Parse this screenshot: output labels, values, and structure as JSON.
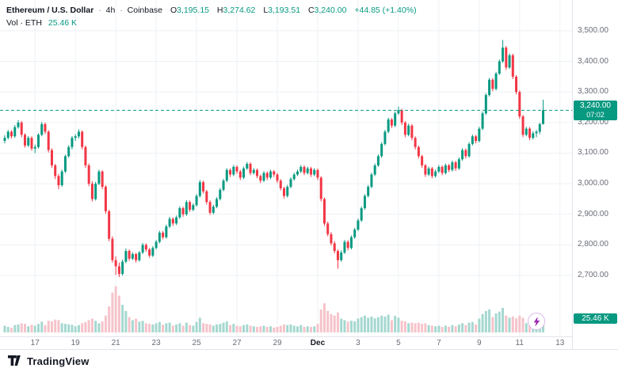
{
  "header": {
    "symbol": "Ethereum / U.S. Dollar",
    "separator": "·",
    "interval": "4h",
    "exchange": "Coinbase",
    "ohlc": {
      "open_label": "O",
      "open": "3,195.15",
      "high_label": "H",
      "high": "3,274.62",
      "low_label": "L",
      "low": "3,193.51",
      "close_label": "C",
      "close": "3,240.00",
      "change": "+44.85 (+1.40%)"
    },
    "volume_label": "Vol · ETH",
    "volume_value": "25.46 K"
  },
  "price_axis": {
    "last_price_badge": {
      "price": "3,240.00",
      "countdown": "07:02"
    },
    "volume_badge": "25.46 K"
  },
  "footer": {
    "brand": "TradingView"
  },
  "colors": {
    "up": "#089981",
    "down": "#f23645",
    "volume_up": "#a5d8d0",
    "volume_down": "#f6c3ca",
    "accent": "#089981",
    "grid": "#eef1f5",
    "axis_border": "#e0e3eb",
    "text": "#131722",
    "muted_text": "#6a6d78",
    "lightning": "#9c27b0"
  },
  "chart_data": {
    "type": "candlestick",
    "title": "Ethereum / U.S. Dollar",
    "interval": "4h",
    "exchange": "Coinbase",
    "legend_position": "top-left",
    "grid": true,
    "last_price": 3240.0,
    "countdown": "07:02",
    "current_volume_k": 25.46,
    "volume_axis_max_k": 155,
    "price_view_range": [
      2660,
      3560
    ],
    "y_ticks": [
      {
        "text": "3,500.00",
        "value": 3500
      },
      {
        "text": "3,400.00",
        "value": 3400
      },
      {
        "text": "3,300.00",
        "value": 3300
      },
      {
        "text": "3,200.00",
        "value": 3200
      },
      {
        "text": "3,100.00",
        "value": 3100
      },
      {
        "text": "3,000.00",
        "value": 3000
      },
      {
        "text": "2,900.00",
        "value": 2900
      },
      {
        "text": "2,800.00",
        "value": 2800
      },
      {
        "text": "2,700.00",
        "value": 2700
      }
    ],
    "x_ticks": [
      {
        "text": "17",
        "i": 9
      },
      {
        "text": "19",
        "i": 21
      },
      {
        "text": "21",
        "i": 33
      },
      {
        "text": "23",
        "i": 45
      },
      {
        "text": "25",
        "i": 57
      },
      {
        "text": "27",
        "i": 69
      },
      {
        "text": "29",
        "i": 81
      },
      {
        "text": "Dec",
        "i": 93,
        "strong": true
      },
      {
        "text": "3",
        "i": 105
      },
      {
        "text": "5",
        "i": 117
      },
      {
        "text": "7",
        "i": 129
      },
      {
        "text": "9",
        "i": 141
      },
      {
        "text": "11",
        "i": 153
      },
      {
        "text": "13",
        "i": 165
      }
    ],
    "candles_format": [
      "open",
      "high",
      "low",
      "close",
      "volume_k"
    ],
    "candles": [
      [
        3140,
        3158,
        3132,
        3150,
        22
      ],
      [
        3150,
        3176,
        3145,
        3170,
        18
      ],
      [
        3170,
        3175,
        3148,
        3155,
        15
      ],
      [
        3155,
        3192,
        3150,
        3185,
        24
      ],
      [
        3185,
        3208,
        3180,
        3200,
        26
      ],
      [
        3200,
        3205,
        3152,
        3160,
        30
      ],
      [
        3160,
        3165,
        3118,
        3125,
        28
      ],
      [
        3125,
        3156,
        3120,
        3150,
        20
      ],
      [
        3150,
        3155,
        3108,
        3115,
        25
      ],
      [
        3115,
        3128,
        3100,
        3120,
        22
      ],
      [
        3120,
        3165,
        3115,
        3160,
        28
      ],
      [
        3160,
        3202,
        3155,
        3195,
        35
      ],
      [
        3195,
        3200,
        3162,
        3170,
        24
      ],
      [
        3170,
        3175,
        3102,
        3110,
        38
      ],
      [
        3110,
        3116,
        3052,
        3060,
        36
      ],
      [
        3060,
        3065,
        3015,
        3025,
        42
      ],
      [
        3025,
        3032,
        2982,
        2995,
        40
      ],
      [
        2995,
        3046,
        2990,
        3040,
        30
      ],
      [
        3040,
        3095,
        3035,
        3090,
        28
      ],
      [
        3090,
        3126,
        3085,
        3120,
        26
      ],
      [
        3120,
        3156,
        3112,
        3150,
        25
      ],
      [
        3150,
        3162,
        3140,
        3155,
        20
      ],
      [
        3155,
        3178,
        3148,
        3170,
        24
      ],
      [
        3170,
        3174,
        3112,
        3120,
        30
      ],
      [
        3120,
        3125,
        3052,
        3060,
        34
      ],
      [
        3060,
        3066,
        2992,
        3000,
        40
      ],
      [
        3000,
        3008,
        2942,
        2950,
        45
      ],
      [
        2950,
        3006,
        2945,
        3000,
        38
      ],
      [
        3000,
        3046,
        2995,
        3040,
        30
      ],
      [
        3040,
        3044,
        2982,
        2990,
        36
      ],
      [
        2990,
        2995,
        2902,
        2910,
        55
      ],
      [
        2910,
        2915,
        2812,
        2820,
        85
      ],
      [
        2820,
        2828,
        2742,
        2750,
        130
      ],
      [
        2750,
        2762,
        2702,
        2730,
        150
      ],
      [
        2730,
        2742,
        2695,
        2705,
        120
      ],
      [
        2705,
        2752,
        2700,
        2745,
        90
      ],
      [
        2745,
        2788,
        2740,
        2780,
        70
      ],
      [
        2780,
        2785,
        2748,
        2755,
        50
      ],
      [
        2755,
        2776,
        2750,
        2770,
        40
      ],
      [
        2770,
        2774,
        2742,
        2750,
        45
      ],
      [
        2750,
        2780,
        2745,
        2775,
        35
      ],
      [
        2775,
        2806,
        2770,
        2800,
        38
      ],
      [
        2800,
        2805,
        2778,
        2785,
        30
      ],
      [
        2785,
        2790,
        2758,
        2765,
        28
      ],
      [
        2765,
        2796,
        2760,
        2790,
        26
      ],
      [
        2790,
        2816,
        2785,
        2810,
        30
      ],
      [
        2810,
        2846,
        2805,
        2840,
        34
      ],
      [
        2840,
        2845,
        2818,
        2825,
        25
      ],
      [
        2825,
        2866,
        2820,
        2860,
        30
      ],
      [
        2860,
        2892,
        2855,
        2885,
        32
      ],
      [
        2885,
        2890,
        2862,
        2870,
        22
      ],
      [
        2870,
        2896,
        2865,
        2890,
        26
      ],
      [
        2890,
        2926,
        2885,
        2920,
        30
      ],
      [
        2920,
        2925,
        2892,
        2900,
        22
      ],
      [
        2900,
        2946,
        2895,
        2940,
        32
      ],
      [
        2940,
        2945,
        2908,
        2915,
        24
      ],
      [
        2915,
        2936,
        2910,
        2930,
        22
      ],
      [
        2930,
        2966,
        2925,
        2960,
        34
      ],
      [
        2960,
        3012,
        2955,
        3005,
        48
      ],
      [
        3005,
        3010,
        2968,
        2975,
        30
      ],
      [
        2975,
        2980,
        2932,
        2940,
        28
      ],
      [
        2940,
        2946,
        2898,
        2905,
        26
      ],
      [
        2905,
        2931,
        2900,
        2925,
        22
      ],
      [
        2925,
        2956,
        2920,
        2950,
        26
      ],
      [
        2950,
        2986,
        2945,
        2980,
        28
      ],
      [
        2980,
        3016,
        2975,
        3010,
        32
      ],
      [
        3010,
        3051,
        3005,
        3045,
        36
      ],
      [
        3045,
        3050,
        3022,
        3030,
        24
      ],
      [
        3030,
        3061,
        3025,
        3055,
        28
      ],
      [
        3055,
        3060,
        3032,
        3040,
        22
      ],
      [
        3040,
        3045,
        3012,
        3020,
        20
      ],
      [
        3020,
        3056,
        3015,
        3050,
        24
      ],
      [
        3050,
        3071,
        3045,
        3065,
        26
      ],
      [
        3065,
        3070,
        3028,
        3035,
        22
      ],
      [
        3035,
        3051,
        3030,
        3045,
        20
      ],
      [
        3045,
        3050,
        3018,
        3025,
        18
      ],
      [
        3025,
        3030,
        3002,
        3010,
        20
      ],
      [
        3010,
        3041,
        3005,
        3035,
        22
      ],
      [
        3035,
        3040,
        3012,
        3020,
        18
      ],
      [
        3020,
        3046,
        3015,
        3040,
        20
      ],
      [
        3040,
        3045,
        3022,
        3030,
        16
      ],
      [
        3030,
        3035,
        3002,
        3010,
        18
      ],
      [
        3010,
        3015,
        2978,
        2985,
        22
      ],
      [
        2985,
        2990,
        2952,
        2960,
        26
      ],
      [
        2960,
        2996,
        2955,
        2990,
        24
      ],
      [
        2990,
        3021,
        2985,
        3015,
        26
      ],
      [
        3015,
        3036,
        3010,
        3030,
        22
      ],
      [
        3030,
        3046,
        3025,
        3040,
        20
      ],
      [
        3040,
        3061,
        3035,
        3055,
        24
      ],
      [
        3055,
        3060,
        3028,
        3035,
        18
      ],
      [
        3035,
        3056,
        3030,
        3050,
        20
      ],
      [
        3050,
        3055,
        3022,
        3030,
        18
      ],
      [
        3030,
        3051,
        3025,
        3045,
        20
      ],
      [
        3045,
        3050,
        3012,
        3020,
        28
      ],
      [
        3020,
        3025,
        2942,
        2950,
        75
      ],
      [
        2950,
        2955,
        2862,
        2870,
        95
      ],
      [
        2870,
        2876,
        2828,
        2835,
        70
      ],
      [
        2835,
        2842,
        2798,
        2805,
        60
      ],
      [
        2805,
        2812,
        2772,
        2780,
        55
      ],
      [
        2780,
        2785,
        2722,
        2750,
        65
      ],
      [
        2750,
        2782,
        2745,
        2775,
        45
      ],
      [
        2775,
        2816,
        2770,
        2810,
        40
      ],
      [
        2810,
        2815,
        2782,
        2790,
        35
      ],
      [
        2790,
        2831,
        2785,
        2825,
        38
      ],
      [
        2825,
        2856,
        2820,
        2850,
        36
      ],
      [
        2850,
        2886,
        2845,
        2880,
        45
      ],
      [
        2880,
        2926,
        2875,
        2920,
        50
      ],
      [
        2920,
        2966,
        2915,
        2960,
        55
      ],
      [
        2960,
        2996,
        2955,
        2990,
        48
      ],
      [
        2990,
        3036,
        2985,
        3030,
        52
      ],
      [
        3030,
        3066,
        3025,
        3060,
        46
      ],
      [
        3060,
        3096,
        3055,
        3090,
        50
      ],
      [
        3090,
        3136,
        3085,
        3130,
        55
      ],
      [
        3130,
        3176,
        3125,
        3170,
        52
      ],
      [
        3170,
        3216,
        3165,
        3210,
        58
      ],
      [
        3210,
        3215,
        3182,
        3190,
        40
      ],
      [
        3190,
        3236,
        3185,
        3230,
        54
      ],
      [
        3230,
        3252,
        3225,
        3240,
        48
      ],
      [
        3240,
        3245,
        3192,
        3200,
        38
      ],
      [
        3200,
        3205,
        3152,
        3160,
        36
      ],
      [
        3160,
        3196,
        3155,
        3190,
        30
      ],
      [
        3190,
        3195,
        3142,
        3150,
        32
      ],
      [
        3150,
        3155,
        3112,
        3120,
        30
      ],
      [
        3120,
        3125,
        3082,
        3090,
        32
      ],
      [
        3090,
        3095,
        3052,
        3060,
        28
      ],
      [
        3060,
        3065,
        3022,
        3030,
        30
      ],
      [
        3030,
        3056,
        3025,
        3050,
        24
      ],
      [
        3050,
        3055,
        3018,
        3025,
        22
      ],
      [
        3025,
        3046,
        3020,
        3040,
        20
      ],
      [
        3040,
        3061,
        3035,
        3055,
        22
      ],
      [
        3055,
        3060,
        3028,
        3035,
        18
      ],
      [
        3035,
        3066,
        3030,
        3060,
        22
      ],
      [
        3060,
        3065,
        3038,
        3045,
        18
      ],
      [
        3045,
        3076,
        3040,
        3070,
        24
      ],
      [
        3070,
        3075,
        3042,
        3050,
        20
      ],
      [
        3050,
        3086,
        3045,
        3080,
        26
      ],
      [
        3080,
        3116,
        3075,
        3110,
        30
      ],
      [
        3110,
        3115,
        3082,
        3090,
        24
      ],
      [
        3090,
        3136,
        3085,
        3130,
        32
      ],
      [
        3130,
        3161,
        3125,
        3155,
        34
      ],
      [
        3155,
        3160,
        3132,
        3140,
        26
      ],
      [
        3140,
        3186,
        3135,
        3180,
        45
      ],
      [
        3180,
        3236,
        3175,
        3230,
        60
      ],
      [
        3230,
        3296,
        3225,
        3290,
        70
      ],
      [
        3290,
        3346,
        3285,
        3340,
        75
      ],
      [
        3340,
        3345,
        3302,
        3310,
        50
      ],
      [
        3310,
        3366,
        3305,
        3360,
        62
      ],
      [
        3360,
        3406,
        3355,
        3400,
        68
      ],
      [
        3400,
        3470,
        3395,
        3445,
        80
      ],
      [
        3445,
        3450,
        3372,
        3380,
        55
      ],
      [
        3380,
        3426,
        3375,
        3420,
        48
      ],
      [
        3420,
        3425,
        3342,
        3350,
        52
      ],
      [
        3350,
        3355,
        3292,
        3300,
        46
      ],
      [
        3300,
        3305,
        3212,
        3220,
        55
      ],
      [
        3220,
        3225,
        3152,
        3160,
        48
      ],
      [
        3160,
        3186,
        3155,
        3180,
        30
      ],
      [
        3180,
        3185,
        3142,
        3150,
        28
      ],
      [
        3150,
        3171,
        3145,
        3165,
        24
      ],
      [
        3165,
        3176,
        3152,
        3170,
        20
      ],
      [
        3170,
        3199,
        3162,
        3195,
        22
      ],
      [
        3195.15,
        3274.62,
        3193.51,
        3240,
        25.46
      ]
    ]
  }
}
